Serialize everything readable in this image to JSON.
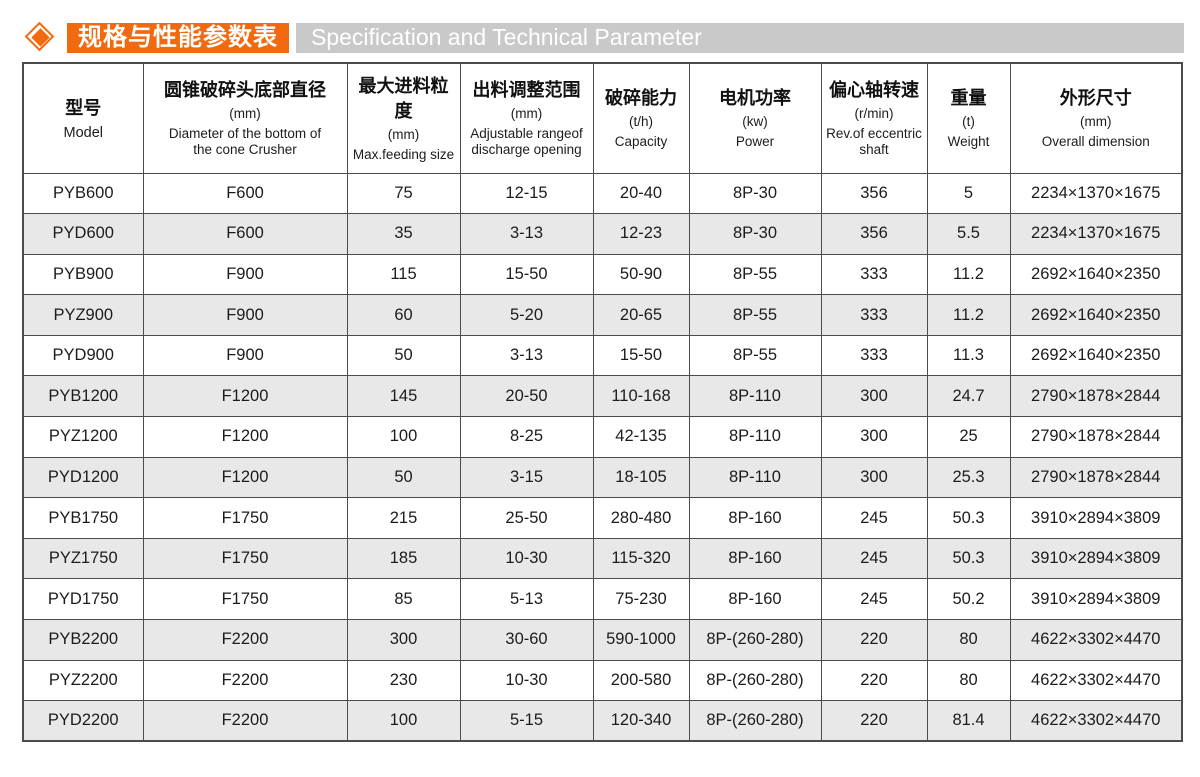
{
  "page": {
    "title_zh": "规格与性能参数表",
    "title_en": "Specification and Technical Parameter",
    "title_icon": "diamond-icon",
    "colors": {
      "accent_orange": "#f26a10",
      "title_bar_gray": "#c9c9c9",
      "row_alt_gray": "#e8e8e8",
      "grid_line": "#4b4b4b"
    }
  },
  "table": {
    "columns": [
      {
        "key": "model",
        "zh": "型号",
        "unit": "",
        "en": "Model"
      },
      {
        "key": "bottom-diameter",
        "zh": "圆锥破碎头底部直径",
        "unit": "(mm)",
        "en": "Diameter of the bottom of the cone Crusher"
      },
      {
        "key": "max-feeding-size",
        "zh": "最大进料粒度",
        "unit": "(mm)",
        "en": "Max.feeding size"
      },
      {
        "key": "discharge-range",
        "zh": "出料调整范围",
        "unit": "(mm)",
        "en": "Adjustable rangeof discharge opening"
      },
      {
        "key": "capacity",
        "zh": "破碎能力",
        "unit": "(t/h)",
        "en": "Capacity"
      },
      {
        "key": "power",
        "zh": "电机功率",
        "unit": "(kw)",
        "en": "Power"
      },
      {
        "key": "eccentric-speed",
        "zh": "偏心轴转速",
        "unit": "(r/min)",
        "en": "Rev.of eccentric shaft"
      },
      {
        "key": "weight",
        "zh": "重量",
        "unit": "(t)",
        "en": "Weight"
      },
      {
        "key": "overall-dimension",
        "zh": "外形尺寸",
        "unit": "(mm)",
        "en": "Overall dimension"
      }
    ],
    "rows": [
      [
        "PYB600",
        "F600",
        "75",
        "12-15",
        "20-40",
        "8P-30",
        "356",
        "5",
        "2234×1370×1675"
      ],
      [
        "PYD600",
        "F600",
        "35",
        "3-13",
        "12-23",
        "8P-30",
        "356",
        "5.5",
        "2234×1370×1675"
      ],
      [
        "PYB900",
        "F900",
        "115",
        "15-50",
        "50-90",
        "8P-55",
        "333",
        "11.2",
        "2692×1640×2350"
      ],
      [
        "PYZ900",
        "F900",
        "60",
        "5-20",
        "20-65",
        "8P-55",
        "333",
        "11.2",
        "2692×1640×2350"
      ],
      [
        "PYD900",
        "F900",
        "50",
        "3-13",
        "15-50",
        "8P-55",
        "333",
        "11.3",
        "2692×1640×2350"
      ],
      [
        "PYB1200",
        "F1200",
        "145",
        "20-50",
        "110-168",
        "8P-110",
        "300",
        "24.7",
        "2790×1878×2844"
      ],
      [
        "PYZ1200",
        "F1200",
        "100",
        "8-25",
        "42-135",
        "8P-110",
        "300",
        "25",
        "2790×1878×2844"
      ],
      [
        "PYD1200",
        "F1200",
        "50",
        "3-15",
        "18-105",
        "8P-110",
        "300",
        "25.3",
        "2790×1878×2844"
      ],
      [
        "PYB1750",
        "F1750",
        "215",
        "25-50",
        "280-480",
        "8P-160",
        "245",
        "50.3",
        "3910×2894×3809"
      ],
      [
        "PYZ1750",
        "F1750",
        "185",
        "10-30",
        "115-320",
        "8P-160",
        "245",
        "50.3",
        "3910×2894×3809"
      ],
      [
        "PYD1750",
        "F1750",
        "85",
        "5-13",
        "75-230",
        "8P-160",
        "245",
        "50.2",
        "3910×2894×3809"
      ],
      [
        "PYB2200",
        "F2200",
        "300",
        "30-60",
        "590-1000",
        "8P-(260-280)",
        "220",
        "80",
        "4622×3302×4470"
      ],
      [
        "PYZ2200",
        "F2200",
        "230",
        "10-30",
        "200-580",
        "8P-(260-280)",
        "220",
        "80",
        "4622×3302×4470"
      ],
      [
        "PYD2200",
        "F2200",
        "100",
        "5-15",
        "120-340",
        "8P-(260-280)",
        "220",
        "81.4",
        "4622×3302×4470"
      ]
    ]
  }
}
